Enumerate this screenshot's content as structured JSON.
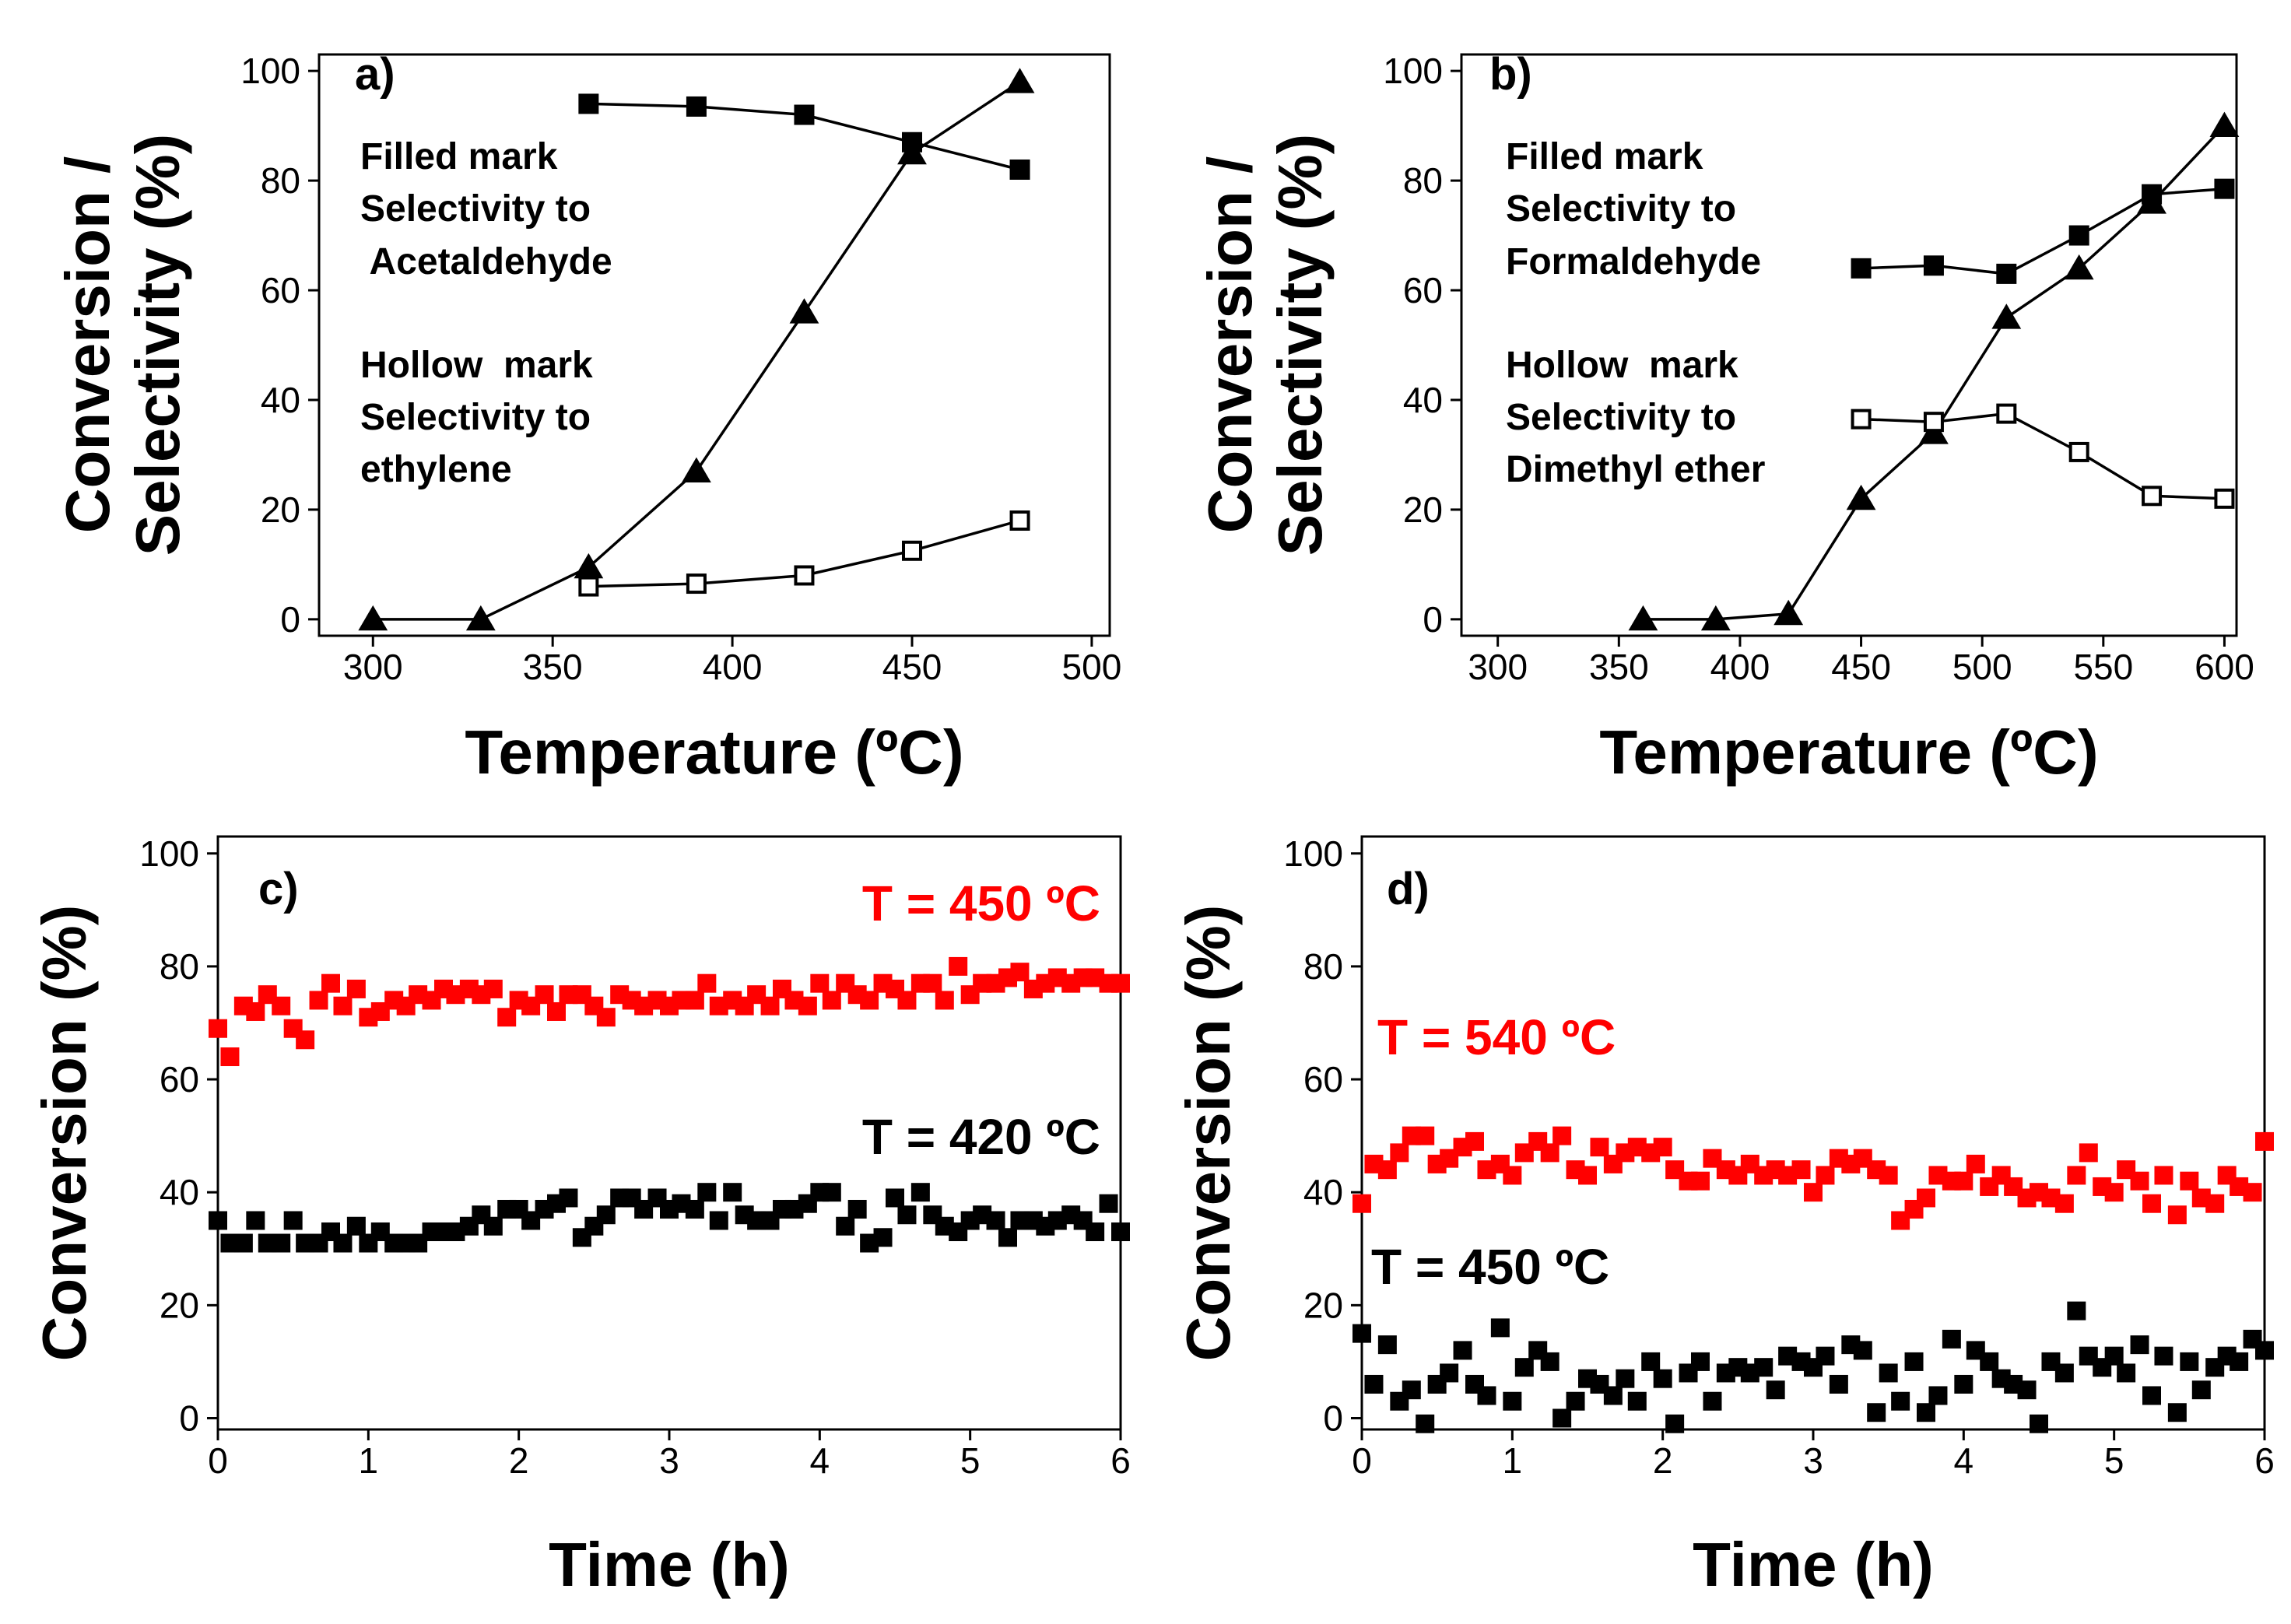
{
  "chart_data": [
    {
      "type": "line",
      "panel": "a)",
      "xlabel": "Temperature (ºC)",
      "ylabel_lines": [
        "Conversion /",
        "Selectivity (%)"
      ],
      "xlim": [
        285,
        505
      ],
      "ylim": [
        -3,
        103
      ],
      "xticks": [
        300,
        350,
        400,
        450,
        500
      ],
      "yticks": [
        0,
        20,
        40,
        60,
        80,
        100
      ],
      "annotations": [
        {
          "id": "filled",
          "lines": [
            "Filled mark",
            "Selectivity to",
            " Acetaldehyde"
          ]
        },
        {
          "id": "hollow",
          "lines": [
            "Hollow  mark",
            "Selectivity to",
            "ethylene"
          ]
        }
      ],
      "series": [
        {
          "name": "Conversion",
          "marker": "triangle",
          "color": "#000000",
          "x": [
            300,
            330,
            360,
            390,
            420,
            450,
            480
          ],
          "y": [
            0,
            0,
            9.5,
            27,
            56,
            85,
            98
          ]
        },
        {
          "name": "Selectivity to Acetaldehyde",
          "marker": "square-filled",
          "color": "#000000",
          "x": [
            360,
            390,
            420,
            450,
            480
          ],
          "y": [
            94,
            93.5,
            92,
            87,
            82
          ]
        },
        {
          "name": "Selectivity to ethylene",
          "marker": "square-hollow",
          "color": "#000000",
          "x": [
            360,
            390,
            420,
            450,
            480
          ],
          "y": [
            6,
            6.5,
            8,
            12.5,
            18
          ]
        }
      ]
    },
    {
      "type": "line",
      "panel": "b)",
      "xlabel": "Temperature (ºC)",
      "ylabel_lines": [
        "Conversion /",
        "Selectivity (%)"
      ],
      "xlim": [
        285,
        605
      ],
      "ylim": [
        -3,
        103
      ],
      "xticks": [
        300,
        350,
        400,
        450,
        500,
        550,
        600
      ],
      "yticks": [
        0,
        20,
        40,
        60,
        80,
        100
      ],
      "annotations": [
        {
          "id": "filled",
          "lines": [
            "Filled mark",
            "Selectivity to",
            "Formaldehyde"
          ]
        },
        {
          "id": "hollow",
          "lines": [
            "Hollow  mark",
            "Selectivity to",
            "Dimethyl ether"
          ]
        }
      ],
      "series": [
        {
          "name": "Conversion",
          "marker": "triangle",
          "color": "#000000",
          "x": [
            360,
            390,
            420,
            450,
            480,
            510,
            540,
            570,
            600
          ],
          "y": [
            0,
            0,
            1,
            22,
            34,
            55,
            64,
            76,
            90
          ]
        },
        {
          "name": "Selectivity to Formaldehyde",
          "marker": "square-filled",
          "color": "#000000",
          "x": [
            450,
            480,
            510,
            540,
            570,
            600
          ],
          "y": [
            64,
            64.5,
            63,
            70,
            77.5,
            78.5
          ]
        },
        {
          "name": "Selectivity to Dimethyl ether",
          "marker": "square-hollow",
          "color": "#000000",
          "x": [
            450,
            480,
            510,
            540,
            570,
            600
          ],
          "y": [
            36.5,
            36,
            37.5,
            30.5,
            22.5,
            22
          ]
        }
      ]
    },
    {
      "type": "scatter",
      "panel": "c)",
      "xlabel": "Time (h)",
      "ylabel_lines": [
        "Conversion (%)"
      ],
      "xlim": [
        0,
        6
      ],
      "ylim": [
        -2,
        103
      ],
      "xticks": [
        0,
        1,
        2,
        3,
        4,
        5,
        6
      ],
      "yticks": [
        0,
        20,
        40,
        60,
        80,
        100
      ],
      "series": [
        {
          "name": "T = 450 ºC",
          "marker": "square-filled",
          "color": "#ff0000",
          "x": [
            0,
            0.08,
            0.17,
            0.25,
            0.33,
            0.42,
            0.5,
            0.58,
            0.67,
            0.75,
            0.83,
            0.92,
            1.0,
            1.08,
            1.17,
            1.25,
            1.33,
            1.42,
            1.5,
            1.58,
            1.67,
            1.75,
            1.83,
            1.92,
            2.0,
            2.08,
            2.17,
            2.25,
            2.33,
            2.42,
            2.5,
            2.58,
            2.67,
            2.75,
            2.83,
            2.92,
            3.0,
            3.08,
            3.17,
            3.25,
            3.33,
            3.42,
            3.5,
            3.58,
            3.67,
            3.75,
            3.83,
            3.92,
            4.0,
            4.08,
            4.17,
            4.25,
            4.33,
            4.42,
            4.5,
            4.58,
            4.67,
            4.75,
            4.83,
            4.92,
            5.0,
            5.08,
            5.17,
            5.25,
            5.33,
            5.42,
            5.5,
            5.58,
            5.67,
            5.75,
            5.83,
            5.92,
            6.0
          ],
          "y": [
            69,
            64,
            73,
            72,
            75,
            73,
            69,
            67,
            74,
            77,
            73,
            76,
            71,
            72,
            74,
            73,
            75,
            74,
            76,
            75,
            76,
            75,
            76,
            71,
            74,
            73,
            75,
            72,
            75,
            75,
            73,
            71,
            75,
            74,
            73,
            74,
            73,
            74,
            74,
            77,
            73,
            74,
            73,
            75,
            73,
            76,
            74,
            73,
            77,
            74,
            77,
            75,
            74,
            77,
            76,
            74,
            77,
            77,
            74,
            80,
            75,
            77,
            77,
            78,
            79,
            76,
            77,
            78,
            77,
            78,
            78,
            77,
            77
          ]
        },
        {
          "name": "T = 420 ºC",
          "marker": "square-filled",
          "color": "#000000",
          "x": [
            0,
            0.08,
            0.17,
            0.25,
            0.33,
            0.42,
            0.5,
            0.58,
            0.67,
            0.75,
            0.83,
            0.92,
            1.0,
            1.08,
            1.17,
            1.25,
            1.33,
            1.42,
            1.5,
            1.58,
            1.67,
            1.75,
            1.83,
            1.92,
            2.0,
            2.08,
            2.17,
            2.25,
            2.33,
            2.42,
            2.5,
            2.58,
            2.67,
            2.75,
            2.83,
            2.92,
            3.0,
            3.08,
            3.17,
            3.25,
            3.33,
            3.42,
            3.5,
            3.58,
            3.67,
            3.75,
            3.83,
            3.92,
            4.0,
            4.08,
            4.17,
            4.25,
            4.33,
            4.42,
            4.5,
            4.58,
            4.67,
            4.75,
            4.83,
            4.92,
            5.0,
            5.08,
            5.17,
            5.25,
            5.33,
            5.42,
            5.5,
            5.58,
            5.67,
            5.75,
            5.83,
            5.92,
            6.0
          ],
          "y": [
            35,
            31,
            31,
            35,
            31,
            31,
            35,
            31,
            31,
            33,
            31,
            34,
            31,
            33,
            31,
            31,
            31,
            33,
            33,
            33,
            34,
            36,
            34,
            37,
            37,
            35,
            37,
            38,
            39,
            32,
            34,
            36,
            39,
            39,
            37,
            39,
            37,
            38,
            37,
            40,
            35,
            40,
            36,
            35,
            35,
            37,
            37,
            38,
            40,
            40,
            34,
            37,
            31,
            32,
            39,
            36,
            40,
            36,
            34,
            33,
            35,
            36,
            35,
            32,
            35,
            35,
            34,
            35,
            36,
            35,
            33,
            38,
            33
          ]
        }
      ],
      "annotations": [
        {
          "id": "red",
          "text": "T = 450 ºC",
          "color": "#ff0000"
        },
        {
          "id": "black",
          "text": "T = 420 ºC",
          "color": "#000000"
        }
      ]
    },
    {
      "type": "scatter",
      "panel": "d)",
      "xlabel": "Time (h)",
      "ylabel_lines": [
        "Conversion (%)"
      ],
      "xlim": [
        0,
        6
      ],
      "ylim": [
        -2,
        103
      ],
      "xticks": [
        0,
        1,
        2,
        3,
        4,
        5,
        6
      ],
      "yticks": [
        0,
        20,
        40,
        60,
        80,
        100
      ],
      "series": [
        {
          "name": "T = 540 ºC",
          "marker": "square-filled",
          "color": "#ff0000",
          "x": [
            0,
            0.08,
            0.17,
            0.25,
            0.33,
            0.42,
            0.5,
            0.58,
            0.67,
            0.75,
            0.83,
            0.92,
            1.0,
            1.08,
            1.17,
            1.25,
            1.33,
            1.42,
            1.5,
            1.58,
            1.67,
            1.75,
            1.83,
            1.92,
            2.0,
            2.08,
            2.17,
            2.25,
            2.33,
            2.42,
            2.5,
            2.58,
            2.67,
            2.75,
            2.83,
            2.92,
            3.0,
            3.08,
            3.17,
            3.25,
            3.33,
            3.42,
            3.5,
            3.58,
            3.67,
            3.75,
            3.83,
            3.92,
            4.0,
            4.08,
            4.17,
            4.25,
            4.33,
            4.42,
            4.5,
            4.58,
            4.67,
            4.75,
            4.83,
            4.92,
            5.0,
            5.08,
            5.17,
            5.25,
            5.33,
            5.42,
            5.5,
            5.58,
            5.67,
            5.75,
            5.83,
            5.92,
            6.0
          ],
          "y": [
            38,
            45,
            44,
            47,
            50,
            50,
            45,
            46,
            48,
            49,
            44,
            45,
            43,
            47,
            49,
            47,
            50,
            44,
            43,
            48,
            45,
            47,
            48,
            47,
            48,
            44,
            42,
            42,
            46,
            44,
            43,
            45,
            43,
            44,
            43,
            44,
            40,
            43,
            46,
            45,
            46,
            44,
            43,
            35,
            37,
            39,
            43,
            42,
            42,
            45,
            41,
            43,
            41,
            39,
            40,
            39,
            38,
            43,
            47,
            41,
            40,
            44,
            42,
            38,
            43,
            36,
            42,
            39,
            38,
            43,
            41,
            40,
            49
          ]
        },
        {
          "name": "T = 450 ºC",
          "marker": "square-filled",
          "color": "#000000",
          "x": [
            0,
            0.08,
            0.17,
            0.25,
            0.33,
            0.42,
            0.5,
            0.58,
            0.67,
            0.75,
            0.83,
            0.92,
            1.0,
            1.08,
            1.17,
            1.25,
            1.33,
            1.42,
            1.5,
            1.58,
            1.67,
            1.75,
            1.83,
            1.92,
            2.0,
            2.08,
            2.17,
            2.25,
            2.33,
            2.42,
            2.5,
            2.58,
            2.67,
            2.75,
            2.83,
            2.92,
            3.0,
            3.08,
            3.17,
            3.25,
            3.33,
            3.42,
            3.5,
            3.58,
            3.67,
            3.75,
            3.83,
            3.92,
            4.0,
            4.08,
            4.17,
            4.25,
            4.33,
            4.42,
            4.5,
            4.58,
            4.67,
            4.75,
            4.83,
            4.92,
            5.0,
            5.08,
            5.17,
            5.25,
            5.33,
            5.42,
            5.5,
            5.58,
            5.67,
            5.75,
            5.83,
            5.92,
            6.0
          ],
          "y": [
            15,
            6,
            13,
            3,
            5,
            -1,
            6,
            8,
            12,
            6,
            4,
            16,
            3,
            9,
            12,
            10,
            0,
            3,
            7,
            6,
            4,
            7,
            3,
            10,
            7,
            -1,
            8,
            10,
            3,
            8,
            9,
            8,
            9,
            5,
            11,
            10,
            9,
            11,
            6,
            13,
            12,
            1,
            8,
            3,
            10,
            1,
            4,
            14,
            6,
            12,
            10,
            7,
            6,
            5,
            -1,
            10,
            8,
            19,
            11,
            9,
            11,
            8,
            13,
            4,
            11,
            1,
            10,
            5,
            9,
            11,
            10,
            14,
            12
          ]
        }
      ],
      "annotations": [
        {
          "id": "red",
          "text": "T = 540 ºC",
          "color": "#ff0000"
        },
        {
          "id": "black",
          "text": "T = 450 ºC",
          "color": "#000000"
        }
      ]
    }
  ]
}
